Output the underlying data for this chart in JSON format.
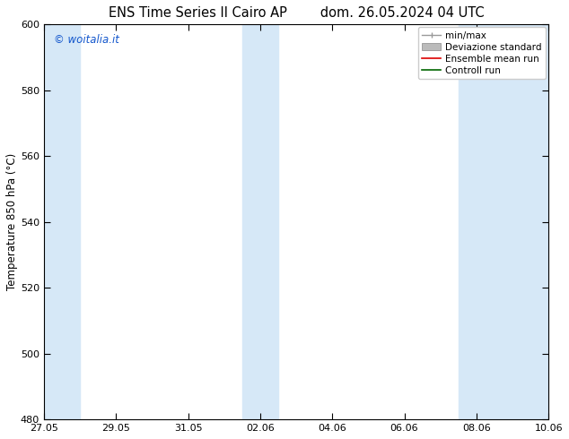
{
  "title_left": "ENS Time Series Il Cairo AP",
  "title_right": "dom. 26.05.2024 04 UTC",
  "ylabel": "Temperature 850 hPa (°C)",
  "ylim": [
    480,
    600
  ],
  "yticks": [
    480,
    500,
    520,
    540,
    560,
    580,
    600
  ],
  "xtick_labels": [
    "27.05",
    "29.05",
    "31.05",
    "02.06",
    "04.06",
    "06.06",
    "08.06",
    "10.06"
  ],
  "watermark": "© woitalia.it",
  "watermark_color": "#1155cc",
  "bg_color": "#ffffff",
  "band_color": "#d6e8f7",
  "shaded_bands_data": [
    {
      "label": "27.05",
      "idx": 0
    },
    {
      "label": "02.06",
      "idx": 3
    },
    {
      "label": "08.06",
      "idx": 6
    },
    {
      "label": "10.06",
      "idx": 7
    }
  ],
  "legend_items": [
    {
      "label": "min/max",
      "color": "#999999",
      "style": "errorbar"
    },
    {
      "label": "Deviazione standard",
      "color": "#bbbbbb",
      "style": "rect"
    },
    {
      "label": "Ensemble mean run",
      "color": "#dd0000",
      "style": "line"
    },
    {
      "label": "Controll run",
      "color": "#006600",
      "style": "line"
    }
  ],
  "spine_color": "#000000",
  "tick_color": "#000000",
  "title_fontsize": 10.5,
  "label_fontsize": 8.5,
  "tick_fontsize": 8,
  "legend_fontsize": 7.5,
  "watermark_fontsize": 8.5
}
